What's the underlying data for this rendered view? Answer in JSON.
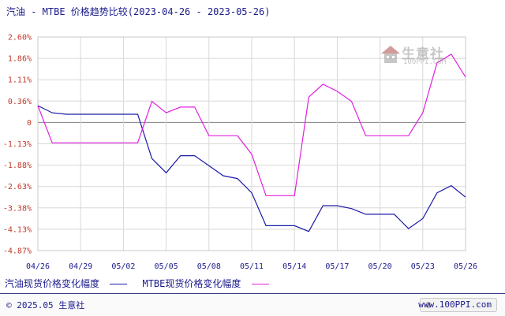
{
  "title": "汽油 - MTBE 价格趋势比较(2023-04-26 - 2023-05-26)",
  "watermark": {
    "name": "生意社",
    "url": "100PPI.COM"
  },
  "footer": {
    "copyright": "© 2025.05 生意社",
    "url": "www.100PPI.com"
  },
  "colors": {
    "gasoline": "#1a1aa6",
    "mtbe": "#e020e0",
    "axis_text": "#c0392b",
    "grid": "#d8d8d8",
    "zero_line": "#808080"
  },
  "chart_data": {
    "type": "line",
    "title": "汽油 - MTBE 价格趋势比较(2023-04-26 - 2023-05-26)",
    "xlabel": "",
    "ylabel": "",
    "y_ticks": [
      "2.60%",
      "1.86%",
      "1.11%",
      "0.36%",
      "0",
      "-1.13%",
      "-1.88%",
      "-2.63%",
      "-3.38%",
      "-4.13%",
      "-4.87%"
    ],
    "ylim": [
      -4.87,
      2.6
    ],
    "x_ticks": [
      "04/26",
      "04/29",
      "05/02",
      "05/05",
      "05/08",
      "05/11",
      "05/14",
      "05/17",
      "05/20",
      "05/23",
      "05/26"
    ],
    "x_days": 30,
    "grid": true,
    "legend_position": "bottom-left",
    "series": [
      {
        "name": "汽油现货价格变化幅度",
        "color": "#1a1aa6",
        "points": [
          [
            0,
            0.2
          ],
          [
            1,
            -0.05
          ],
          [
            2,
            -0.1
          ],
          [
            3,
            -0.1
          ],
          [
            4,
            -0.1
          ],
          [
            5,
            -0.1
          ],
          [
            6,
            -0.1
          ],
          [
            7,
            -0.1
          ],
          [
            8,
            -1.65
          ],
          [
            9,
            -2.15
          ],
          [
            10,
            -1.55
          ],
          [
            11,
            -1.55
          ],
          [
            12,
            -1.9
          ],
          [
            13,
            -2.25
          ],
          [
            14,
            -2.35
          ],
          [
            15,
            -2.85
          ],
          [
            16,
            -4.0
          ],
          [
            17,
            -4.0
          ],
          [
            18,
            -4.0
          ],
          [
            19,
            -4.2
          ],
          [
            20,
            -3.3
          ],
          [
            21,
            -3.3
          ],
          [
            22,
            -3.4
          ],
          [
            23,
            -3.6
          ],
          [
            24,
            -3.6
          ],
          [
            25,
            -3.6
          ],
          [
            26,
            -4.1
          ],
          [
            27,
            -3.75
          ],
          [
            28,
            -2.85
          ],
          [
            29,
            -2.6
          ],
          [
            30,
            -3.0
          ]
        ]
      },
      {
        "name": "MTBE现货价格变化幅度",
        "color": "#e020e0",
        "points": [
          [
            0,
            0.2
          ],
          [
            1,
            -1.1
          ],
          [
            2,
            -1.1
          ],
          [
            3,
            -1.1
          ],
          [
            4,
            -1.1
          ],
          [
            5,
            -1.1
          ],
          [
            6,
            -1.1
          ],
          [
            7,
            -1.1
          ],
          [
            8,
            0.35
          ],
          [
            9,
            -0.05
          ],
          [
            10,
            0.15
          ],
          [
            11,
            0.15
          ],
          [
            12,
            -0.85
          ],
          [
            13,
            -0.85
          ],
          [
            14,
            -0.85
          ],
          [
            15,
            -1.5
          ],
          [
            16,
            -2.95
          ],
          [
            17,
            -2.95
          ],
          [
            18,
            -2.95
          ],
          [
            19,
            0.5
          ],
          [
            20,
            0.95
          ],
          [
            21,
            0.7
          ],
          [
            22,
            0.35
          ],
          [
            23,
            -0.85
          ],
          [
            24,
            -0.85
          ],
          [
            25,
            -0.85
          ],
          [
            26,
            -0.85
          ],
          [
            27,
            -0.05
          ],
          [
            28,
            1.7
          ],
          [
            29,
            2.0
          ],
          [
            30,
            1.2
          ]
        ]
      }
    ]
  }
}
